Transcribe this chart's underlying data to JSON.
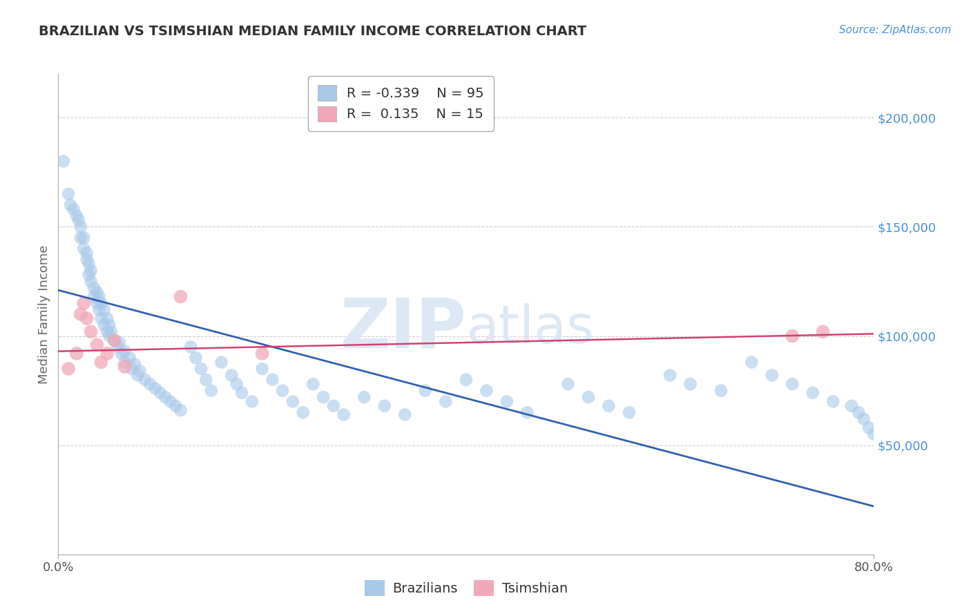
{
  "title": "BRAZILIAN VS TSIMSHIAN MEDIAN FAMILY INCOME CORRELATION CHART",
  "source_text": "Source: ZipAtlas.com",
  "ylabel": "Median Family Income",
  "xlim": [
    0.0,
    0.8
  ],
  "ylim": [
    0,
    220000
  ],
  "xtick_vals": [
    0.0,
    0.8
  ],
  "xtick_labels": [
    "0.0%",
    "80.0%"
  ],
  "ytick_vals": [
    50000,
    100000,
    150000,
    200000
  ],
  "ytick_labels": [
    "$50,000",
    "$100,000",
    "$150,000",
    "$200,000"
  ],
  "blue_color": "#a8c8e8",
  "blue_line_color": "#3060b0",
  "pink_color": "#f0a8b8",
  "pink_line_color": "#d04070",
  "legend_R1": "-0.339",
  "legend_N1": "95",
  "legend_R2": "0.135",
  "legend_N2": "15",
  "legend_label1": "Brazilians",
  "legend_label2": "Tsimshian",
  "watermark_zip": "ZIP",
  "watermark_atlas": "atlas",
  "blue_scatter_x": [
    0.005,
    0.01,
    0.012,
    0.015,
    0.018,
    0.02,
    0.022,
    0.022,
    0.025,
    0.025,
    0.028,
    0.028,
    0.03,
    0.03,
    0.032,
    0.032,
    0.035,
    0.035,
    0.038,
    0.038,
    0.04,
    0.04,
    0.042,
    0.042,
    0.045,
    0.045,
    0.048,
    0.048,
    0.05,
    0.05,
    0.052,
    0.055,
    0.058,
    0.06,
    0.062,
    0.065,
    0.065,
    0.07,
    0.072,
    0.075,
    0.078,
    0.08,
    0.085,
    0.09,
    0.095,
    0.1,
    0.105,
    0.11,
    0.115,
    0.12,
    0.13,
    0.135,
    0.14,
    0.145,
    0.15,
    0.16,
    0.17,
    0.175,
    0.18,
    0.19,
    0.2,
    0.21,
    0.22,
    0.23,
    0.24,
    0.25,
    0.26,
    0.27,
    0.28,
    0.3,
    0.32,
    0.34,
    0.36,
    0.38,
    0.4,
    0.42,
    0.44,
    0.46,
    0.5,
    0.52,
    0.54,
    0.56,
    0.6,
    0.62,
    0.65,
    0.68,
    0.7,
    0.72,
    0.74,
    0.76,
    0.778,
    0.785,
    0.79,
    0.795,
    0.8
  ],
  "blue_scatter_y": [
    180000,
    165000,
    160000,
    158000,
    155000,
    153000,
    150000,
    145000,
    145000,
    140000,
    138000,
    135000,
    133000,
    128000,
    130000,
    125000,
    122000,
    118000,
    120000,
    115000,
    118000,
    112000,
    115000,
    108000,
    112000,
    105000,
    108000,
    102000,
    105000,
    100000,
    102000,
    98000,
    95000,
    97000,
    92000,
    93000,
    88000,
    90000,
    85000,
    87000,
    82000,
    84000,
    80000,
    78000,
    76000,
    74000,
    72000,
    70000,
    68000,
    66000,
    95000,
    90000,
    85000,
    80000,
    75000,
    88000,
    82000,
    78000,
    74000,
    70000,
    85000,
    80000,
    75000,
    70000,
    65000,
    78000,
    72000,
    68000,
    64000,
    72000,
    68000,
    64000,
    75000,
    70000,
    80000,
    75000,
    70000,
    65000,
    78000,
    72000,
    68000,
    65000,
    82000,
    78000,
    75000,
    88000,
    82000,
    78000,
    74000,
    70000,
    68000,
    65000,
    62000,
    58000,
    55000
  ],
  "pink_scatter_x": [
    0.01,
    0.018,
    0.022,
    0.025,
    0.028,
    0.032,
    0.038,
    0.042,
    0.048,
    0.055,
    0.065,
    0.12,
    0.2,
    0.72,
    0.75
  ],
  "pink_scatter_y": [
    85000,
    92000,
    110000,
    115000,
    108000,
    102000,
    96000,
    88000,
    92000,
    98000,
    86000,
    118000,
    92000,
    100000,
    102000
  ],
  "blue_line_x0": 0.0,
  "blue_line_y0": 121000,
  "blue_line_x1": 0.8,
  "blue_line_y1": 22000,
  "pink_line_x0": 0.0,
  "pink_line_y0": 93000,
  "pink_line_x1": 0.8,
  "pink_line_y1": 101000,
  "bg_color": "#ffffff",
  "grid_color": "#cccccc",
  "axis_color": "#aaaaaa",
  "title_color": "#333333",
  "ylabel_color": "#666666",
  "ytick_right_color": "#4a90d9",
  "xtick_color": "#555555",
  "legend_text_color": "#333333"
}
